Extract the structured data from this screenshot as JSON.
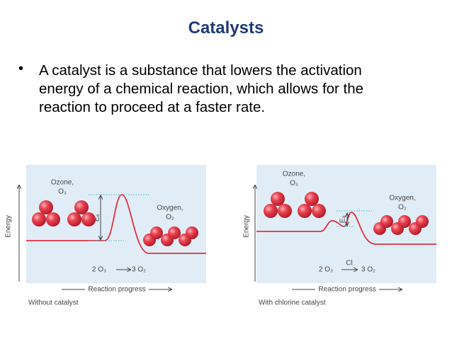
{
  "title": "Catalysts",
  "bullet": "A catalyst is a substance that lowers the activation energy of a chemical reaction, which allows for the reaction to proceed at a faster rate.",
  "diagrams": [
    {
      "y_axis": "Energy",
      "x_axis": "Reaction progress",
      "caption": "Without catalyst",
      "reactant": "Ozone,",
      "reactant_formula": "O₃",
      "product": "Oxygen,",
      "product_formula": "O₂",
      "activation": "Eₐ",
      "equation_left": "2 O₃",
      "equation_right": "3 O₂"
    },
    {
      "y_axis": "Energy",
      "x_axis": "Reaction progress",
      "caption": "With chlorine catalyst",
      "reactant": "Ozone,",
      "reactant_formula": "O₃",
      "product": "Oxygen,",
      "product_formula": "O₂",
      "activation": "Eₐ",
      "equation_left": "2 O₃",
      "catalyst": "Cl",
      "equation_right": "3 O₂"
    }
  ]
}
